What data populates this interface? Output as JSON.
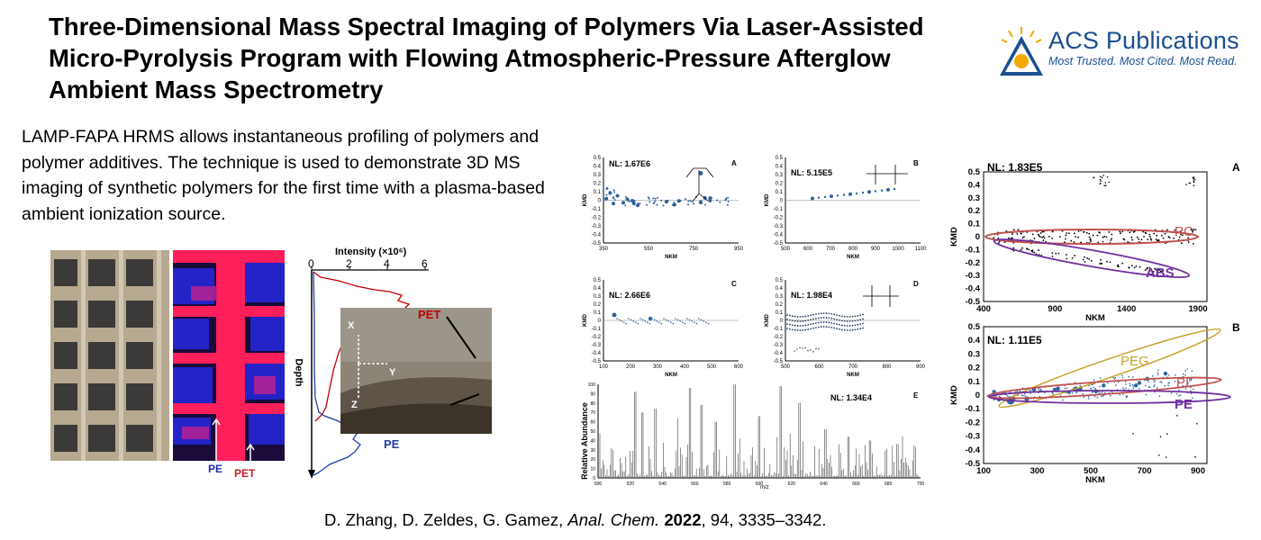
{
  "title": "Three-Dimensional Mass Spectral Imaging of Polymers Via Laser-Assisted Micro-Pyrolysis Program with Flowing Atmospheric-Pressure Afterglow Ambient Mass Spectrometry",
  "publisher": {
    "name": "ACS Publications",
    "tagline": "Most Trusted. Most Cited. Most Read."
  },
  "summary": "LAMP-FAPA HRMS allows instantaneous profiling of polymers and polymer additives. The technique is used to demonstrate 3D MS imaging of synthetic polymers for the first time with a plasma-based ambient ionization source.",
  "citation": {
    "authors": "D. Zhang, D. Zeldes, G. Gamez, ",
    "journal": "Anal. Chem.",
    "year": "2022",
    "rest": ", 94, 3335–3342."
  },
  "profile_figure": {
    "axis_title": "Intensity (×10⁶)",
    "ticks": [
      "0",
      "2",
      "4",
      "6"
    ],
    "depth_label": "Depth",
    "labels": {
      "pe": "PE",
      "pet": "PET",
      "x": "X",
      "y": "Y",
      "z": "Z"
    }
  },
  "kmd_panels": {
    "A": {
      "nl": "NL: 1.67E6",
      "letter": "A",
      "x_ticks": [
        "350",
        "550",
        "750",
        "950"
      ]
    },
    "B": {
      "nl": "NL: 5.15E5",
      "letter": "B",
      "x_ticks": [
        "500",
        "600",
        "700",
        "800",
        "900",
        "1000",
        "1100"
      ]
    },
    "C": {
      "nl": "NL: 2.66E6",
      "letter": "C",
      "x_ticks": [
        "100",
        "200",
        "300",
        "400",
        "500",
        "600"
      ]
    },
    "D": {
      "nl": "NL: 1.98E4",
      "letter": "D",
      "x_ticks": [
        "500",
        "600",
        "700",
        "800",
        "900"
      ]
    },
    "E": {
      "nl": "NL: 1.34E4",
      "letter": "E",
      "x_ticks": [
        "500",
        "520",
        "540",
        "560",
        "580",
        "600",
        "620",
        "640",
        "660",
        "680",
        "700"
      ],
      "y_ticks": [
        "0",
        "10",
        "20",
        "30",
        "40",
        "50",
        "60",
        "70",
        "80",
        "90",
        "100"
      ],
      "y_title": "Relative Abundance",
      "x_title": "m/z"
    },
    "y_ticks": [
      "0.5",
      "0.4",
      "0.3",
      "0.2",
      "0.1",
      "0",
      "-0.1",
      "-0.2",
      "-0.3",
      "-0.4",
      "-0.5"
    ],
    "y_title": "KMD",
    "x_title": "NKM"
  },
  "right_panels": {
    "A": {
      "nl": "NL: 1.83E5",
      "letter": "A",
      "x_ticks": [
        "400",
        "900",
        "1400",
        "1900"
      ],
      "labels": [
        "PC",
        "ABS"
      ]
    },
    "B": {
      "nl": "NL: 1.11E5",
      "letter": "B",
      "x_ticks": [
        "100",
        "300",
        "500",
        "700",
        "900"
      ],
      "labels": [
        "PEG",
        "PI",
        "PE"
      ]
    },
    "y_ticks": [
      "0.5",
      "0.4",
      "0.3",
      "0.2",
      "0.1",
      "0",
      "-0.1",
      "-0.2",
      "-0.3",
      "-0.4",
      "-0.5"
    ],
    "y_title": "KMD",
    "x_title": "NKM"
  },
  "colors": {
    "pc": "#c0504d",
    "abs": "#7030a0",
    "peg": "#c9a227",
    "pi": "#c0504d",
    "pe": "#7030a0",
    "point": "#31639c"
  }
}
